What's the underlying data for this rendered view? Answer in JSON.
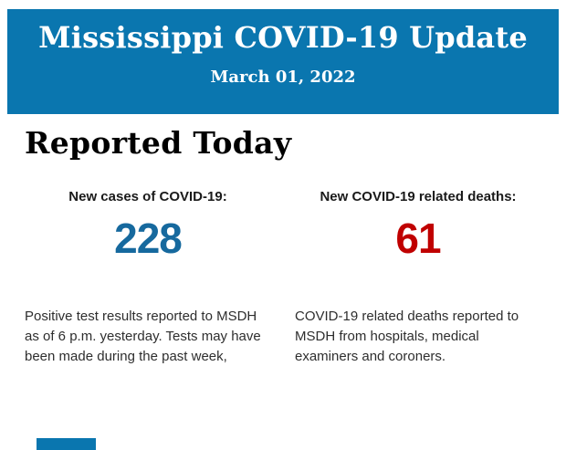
{
  "banner": {
    "title": "Mississippi COVID-19 Update",
    "date": "March 01, 2022",
    "background": "#0a76af",
    "text_color": "#ffffff"
  },
  "section": {
    "title": "Reported Today"
  },
  "stats": [
    {
      "label": "New cases of COVID-19:",
      "value": "228",
      "value_color": "#16699e",
      "description": "Positive test results reported to MSDH as of 6 p.m. yesterday. Tests may have been made during the past week,"
    },
    {
      "label": "New COVID-19 related deaths:",
      "value": "61",
      "value_color": "#c00000",
      "description": "COVID-19 related deaths reported to MSDH from hospitals, medical examiners and coroners."
    }
  ],
  "partial_next_block": {
    "color": "#0a76af"
  }
}
